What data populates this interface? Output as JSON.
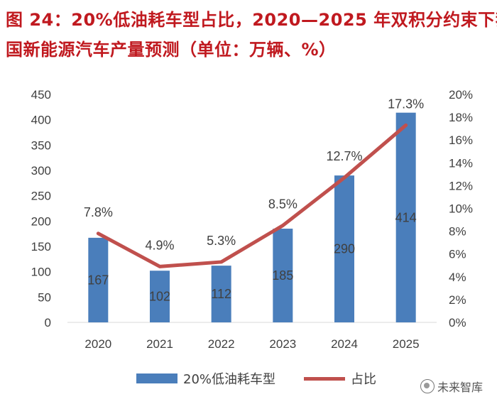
{
  "header": {
    "title_line_1": "图 24：20%低油耗车型占比，2020—2025 年双积分约束下我",
    "title_line_2": "国新能源汽车产量预测（单位：万辆、%）"
  },
  "watermark": {
    "icon": "wechat-icon",
    "text": "未来智库"
  },
  "colors": {
    "bar": "#4a7ebb",
    "line": "#c0504d",
    "title": "#c0191f",
    "text": "#404040",
    "axis": "#d9d9d9"
  },
  "chart_data": {
    "type": "bar+line",
    "title": "图 24：20%低油耗车型占比，2020—2025 年双积分约束下我国新能源汽车产量预测（单位：万辆、%）",
    "categories": [
      "2020",
      "2021",
      "2022",
      "2023",
      "2024",
      "2025"
    ],
    "series": [
      {
        "name": "20%低油耗车型",
        "type": "bar",
        "axis": "left",
        "values": [
          167,
          102,
          112,
          185,
          290,
          414
        ],
        "labels": [
          "167",
          "102",
          "112",
          "185",
          "290",
          "414"
        ]
      },
      {
        "name": "占比",
        "type": "line",
        "axis": "right",
        "values": [
          7.8,
          4.9,
          5.3,
          8.5,
          12.7,
          17.3
        ],
        "labels": [
          "7.8%",
          "4.9%",
          "5.3%",
          "8.5%",
          "12.7%",
          "17.3%"
        ]
      }
    ],
    "y_left": {
      "min": 0,
      "max": 450,
      "step": 50,
      "ticks": [
        "0",
        "50",
        "100",
        "150",
        "200",
        "250",
        "300",
        "350",
        "400",
        "450"
      ]
    },
    "y_right": {
      "min": 0,
      "max": 20,
      "step": 2,
      "ticks": [
        "0%",
        "2%",
        "4%",
        "6%",
        "8%",
        "10%",
        "12%",
        "14%",
        "16%",
        "18%",
        "20%"
      ]
    },
    "legend_position": "bottom",
    "grid": false
  }
}
